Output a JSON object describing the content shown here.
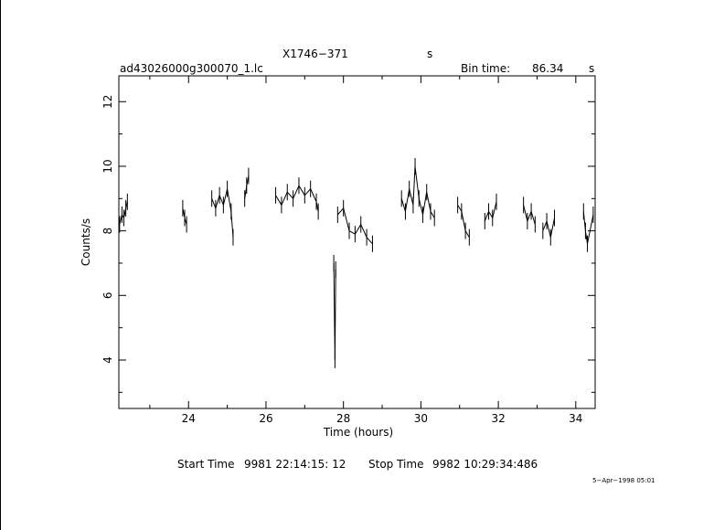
{
  "header": {
    "source_name": "X1746−371",
    "source_suffix": "s",
    "file_name": "ad43026000g300070_1.lc",
    "bin_label": "Bin time:",
    "bin_value": "86.34",
    "bin_unit": "s"
  },
  "footer": {
    "start_label": "Start Time",
    "start_value": "9981 22:14:15: 12",
    "stop_label": "Stop Time",
    "stop_value": "9982 10:29:34:486",
    "date_stamp": "5−Apr−1998 05:01"
  },
  "chart_data": {
    "type": "line",
    "xlabel": "Time (hours)",
    "ylabel": "Counts/s",
    "xlim": [
      22.2,
      34.5
    ],
    "ylim": [
      2.5,
      12.8
    ],
    "x_ticks": [
      24,
      26,
      28,
      30,
      32,
      34
    ],
    "y_ticks": [
      4,
      6,
      8,
      10,
      12
    ],
    "grid": false,
    "segments": [
      {
        "x": [
          22.22,
          22.28,
          22.33,
          22.38,
          22.42
        ],
        "y": [
          8.2,
          8.5,
          8.4,
          8.7,
          8.9
        ]
      },
      {
        "x": [
          23.85,
          23.9,
          23.95
        ],
        "y": [
          8.7,
          8.4,
          8.2
        ]
      },
      {
        "x": [
          24.6,
          24.7,
          24.8,
          24.9,
          25.0,
          25.1,
          25.15
        ],
        "y": [
          9.0,
          8.7,
          9.1,
          8.8,
          9.3,
          8.6,
          7.8
        ]
      },
      {
        "x": [
          25.45,
          25.5,
          25.55
        ],
        "y": [
          9.0,
          9.4,
          9.7
        ]
      },
      {
        "x": [
          26.25,
          26.4,
          26.55,
          26.7,
          26.85,
          27.0,
          27.15,
          27.3,
          27.35
        ],
        "y": [
          9.1,
          8.8,
          9.2,
          9.0,
          9.4,
          9.1,
          9.3,
          8.9,
          8.6
        ]
      },
      {
        "x": [
          27.75,
          27.78,
          27.8
        ],
        "y": [
          7.0,
          4.0,
          6.8
        ]
      },
      {
        "x": [
          27.85,
          28.0,
          28.15,
          28.3,
          28.45,
          28.6,
          28.75
        ],
        "y": [
          8.5,
          8.7,
          8.0,
          7.9,
          8.2,
          7.8,
          7.6
        ]
      },
      {
        "x": [
          29.5,
          29.6,
          29.7,
          29.8,
          29.85,
          29.95,
          30.05,
          30.15,
          30.25,
          30.35
        ],
        "y": [
          9.0,
          8.6,
          9.3,
          8.8,
          10.0,
          9.0,
          8.5,
          9.2,
          8.6,
          8.4
        ]
      },
      {
        "x": [
          30.95,
          31.05,
          31.15,
          31.25
        ],
        "y": [
          8.8,
          8.6,
          8.0,
          7.8
        ]
      },
      {
        "x": [
          31.65,
          31.75,
          31.85,
          31.95
        ],
        "y": [
          8.3,
          8.6,
          8.4,
          8.9
        ]
      },
      {
        "x": [
          32.65,
          32.75,
          32.85,
          32.95
        ],
        "y": [
          8.8,
          8.3,
          8.6,
          8.2
        ]
      },
      {
        "x": [
          33.15,
          33.25,
          33.35,
          33.45
        ],
        "y": [
          8.0,
          8.3,
          7.8,
          8.4
        ]
      },
      {
        "x": [
          34.2,
          34.25,
          34.3,
          34.45
        ],
        "y": [
          8.6,
          8.0,
          7.6,
          8.5
        ]
      }
    ]
  }
}
